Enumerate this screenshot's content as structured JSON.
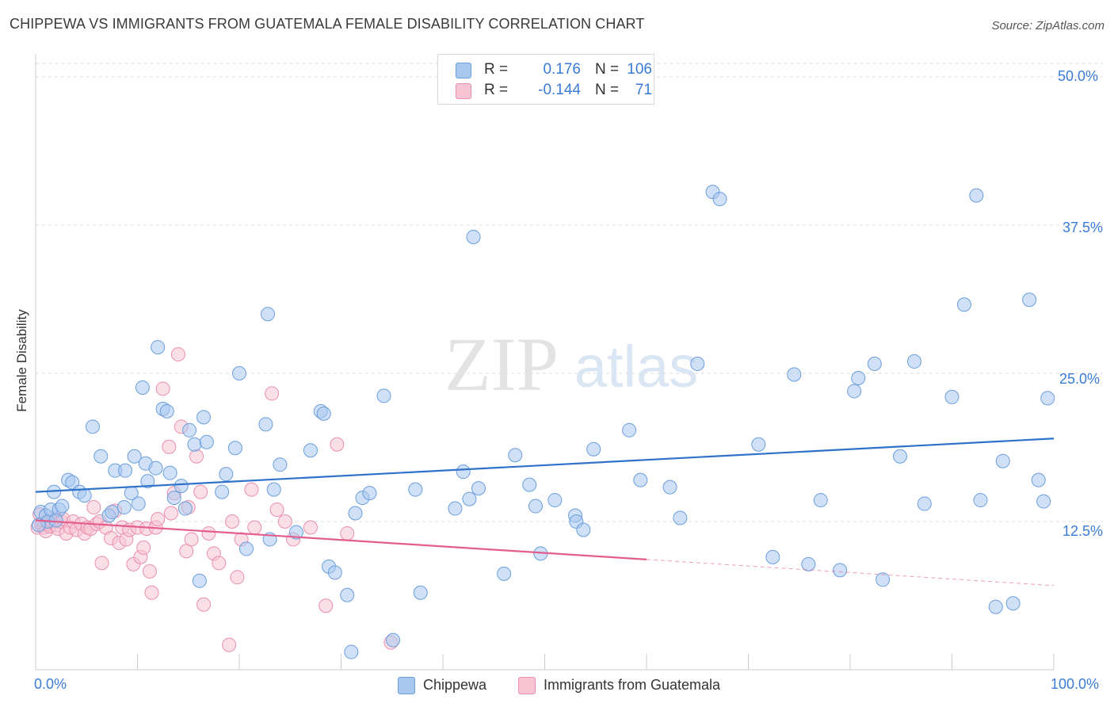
{
  "header": {
    "title": "CHIPPEWA VS IMMIGRANTS FROM GUATEMALA FEMALE DISABILITY CORRELATION CHART",
    "source": "Source: ZipAtlas.com"
  },
  "watermark": {
    "zip": "ZIP",
    "atlas": "atlas"
  },
  "legend_top": {
    "rows": [
      {
        "r_label": "R =",
        "r_value": "0.176",
        "n_label": "N =",
        "n_value": "106",
        "color": "#a9c8f0"
      },
      {
        "r_label": "R =",
        "r_value": "-0.144",
        "n_label": "N =",
        "n_value": "71",
        "color": "#f5b8cc"
      }
    ]
  },
  "legend_bottom": {
    "items": [
      {
        "label": "Chippewa",
        "color": "#a9c8f0"
      },
      {
        "label": "Immigrants from Guatemala",
        "color": "#f5b8cc"
      }
    ]
  },
  "colors": {
    "blue_fill": "#a9c8f0",
    "blue_stroke": "#6a9edc",
    "blue_line": "#2f72c9",
    "pink_fill": "#f7c4d4",
    "pink_stroke": "#e98fae",
    "pink_line": "#e35d8e",
    "grid": "#dddddd",
    "tick_text": "#3a7bd5"
  },
  "chart_data": {
    "type": "scatter",
    "title": "CHIPPEWA VS IMMIGRANTS FROM GUATEMALA FEMALE DISABILITY CORRELATION CHART",
    "xlabel": "",
    "ylabel": "Female Disability",
    "xlim": [
      0,
      100
    ],
    "ylim": [
      0,
      50
    ],
    "x_tick_labels": [
      "0.0%",
      "100.0%"
    ],
    "y_ticks": [
      12.5,
      25.0,
      37.5,
      50.0
    ],
    "y_tick_labels": [
      "12.5%",
      "25.0%",
      "37.5%",
      "50.0%"
    ],
    "grid": true,
    "legend_position": "top-center",
    "series": [
      {
        "name": "Chippewa",
        "r": 0.176,
        "n": 106,
        "trend": {
          "x0": 0,
          "y0": 15.0,
          "x1": 100,
          "y1": 19.5,
          "dashed_from": null
        },
        "points": [
          [
            0.5,
            13.3
          ],
          [
            1.0,
            13.0
          ],
          [
            1.2,
            12.5
          ],
          [
            1.5,
            13.5
          ],
          [
            1.8,
            15.0
          ],
          [
            2.3,
            13.5
          ],
          [
            2.6,
            13.8
          ],
          [
            3.2,
            16.0
          ],
          [
            3.6,
            15.8
          ],
          [
            4.3,
            15.0
          ],
          [
            4.8,
            14.7
          ],
          [
            5.6,
            20.5
          ],
          [
            6.4,
            18.0
          ],
          [
            7.2,
            13.0
          ],
          [
            7.5,
            13.3
          ],
          [
            7.8,
            16.8
          ],
          [
            8.7,
            13.7
          ],
          [
            8.8,
            16.8
          ],
          [
            9.4,
            14.9
          ],
          [
            9.7,
            18.0
          ],
          [
            10.1,
            14.0
          ],
          [
            10.5,
            23.8
          ],
          [
            10.8,
            17.4
          ],
          [
            11.0,
            15.9
          ],
          [
            11.8,
            17.0
          ],
          [
            12.0,
            27.2
          ],
          [
            12.5,
            22.0
          ],
          [
            12.9,
            21.8
          ],
          [
            13.2,
            16.6
          ],
          [
            13.6,
            14.5
          ],
          [
            14.3,
            15.5
          ],
          [
            14.7,
            13.6
          ],
          [
            15.1,
            20.2
          ],
          [
            15.6,
            19.0
          ],
          [
            16.1,
            7.5
          ],
          [
            16.5,
            21.3
          ],
          [
            16.8,
            19.2
          ],
          [
            18.3,
            15.0
          ],
          [
            18.7,
            16.5
          ],
          [
            19.6,
            18.7
          ],
          [
            20.0,
            25.0
          ],
          [
            20.7,
            10.2
          ],
          [
            22.6,
            20.7
          ],
          [
            22.8,
            30.0
          ],
          [
            23.0,
            11.0
          ],
          [
            23.4,
            15.2
          ],
          [
            24.0,
            17.3
          ],
          [
            25.6,
            11.6
          ],
          [
            27.0,
            18.5
          ],
          [
            28.0,
            21.8
          ],
          [
            28.3,
            21.6
          ],
          [
            28.8,
            8.7
          ],
          [
            29.4,
            8.2
          ],
          [
            30.6,
            6.3
          ],
          [
            31.0,
            1.5
          ],
          [
            31.4,
            13.2
          ],
          [
            32.1,
            14.5
          ],
          [
            32.8,
            14.9
          ],
          [
            34.2,
            23.1
          ],
          [
            35.1,
            2.5
          ],
          [
            37.3,
            15.2
          ],
          [
            37.8,
            6.5
          ],
          [
            41.2,
            13.6
          ],
          [
            42.0,
            16.7
          ],
          [
            42.6,
            14.4
          ],
          [
            43.0,
            36.5
          ],
          [
            43.5,
            15.3
          ],
          [
            46.0,
            8.1
          ],
          [
            47.1,
            18.1
          ],
          [
            48.5,
            15.6
          ],
          [
            49.1,
            13.8
          ],
          [
            49.6,
            9.8
          ],
          [
            51.0,
            14.3
          ],
          [
            53.0,
            13.0
          ],
          [
            53.1,
            12.5
          ],
          [
            53.8,
            11.8
          ],
          [
            54.8,
            18.6
          ],
          [
            58.3,
            20.2
          ],
          [
            59.4,
            16.0
          ],
          [
            62.3,
            15.4
          ],
          [
            63.3,
            12.8
          ],
          [
            65.0,
            25.8
          ],
          [
            66.5,
            40.3
          ],
          [
            67.2,
            39.7
          ],
          [
            71.0,
            19.0
          ],
          [
            72.4,
            9.5
          ],
          [
            74.5,
            24.9
          ],
          [
            75.9,
            8.9
          ],
          [
            77.1,
            14.3
          ],
          [
            79.0,
            8.4
          ],
          [
            80.4,
            23.5
          ],
          [
            80.8,
            24.6
          ],
          [
            82.4,
            25.8
          ],
          [
            83.2,
            7.6
          ],
          [
            84.9,
            18.0
          ],
          [
            86.3,
            26.0
          ],
          [
            87.3,
            14.0
          ],
          [
            90.0,
            23.0
          ],
          [
            91.2,
            30.8
          ],
          [
            92.4,
            40.0
          ],
          [
            92.8,
            14.3
          ],
          [
            94.3,
            5.3
          ],
          [
            95.0,
            17.6
          ],
          [
            96.0,
            5.6
          ],
          [
            97.6,
            31.2
          ],
          [
            98.5,
            16.0
          ],
          [
            99.0,
            14.2
          ],
          [
            99.4,
            22.9
          ],
          [
            0.3,
            12.2
          ],
          [
            2.0,
            12.6
          ]
        ]
      },
      {
        "name": "Immigrants from Guatemala",
        "r": -0.144,
        "n": 71,
        "trend": {
          "x0": 0,
          "y0": 12.6,
          "x1": 100,
          "y1": 7.1,
          "dashed_from": 60
        },
        "points": [
          [
            0.2,
            12.0
          ],
          [
            0.4,
            13.1
          ],
          [
            0.6,
            12.3
          ],
          [
            0.8,
            12.0
          ],
          [
            1.0,
            11.7
          ],
          [
            1.2,
            12.3
          ],
          [
            1.4,
            12.1
          ],
          [
            1.6,
            12.5
          ],
          [
            1.8,
            12.8
          ],
          [
            2.0,
            12.2
          ],
          [
            2.2,
            11.9
          ],
          [
            2.5,
            12.5
          ],
          [
            2.7,
            12.7
          ],
          [
            3.0,
            11.5
          ],
          [
            3.4,
            12.0
          ],
          [
            3.7,
            12.5
          ],
          [
            4.0,
            11.8
          ],
          [
            4.5,
            12.3
          ],
          [
            4.8,
            11.5
          ],
          [
            5.1,
            12.0
          ],
          [
            5.4,
            11.9
          ],
          [
            5.7,
            13.7
          ],
          [
            6.0,
            12.3
          ],
          [
            6.3,
            12.5
          ],
          [
            6.5,
            9.0
          ],
          [
            6.9,
            12.0
          ],
          [
            7.4,
            11.1
          ],
          [
            7.8,
            13.4
          ],
          [
            8.2,
            10.7
          ],
          [
            8.5,
            12.0
          ],
          [
            8.9,
            11.0
          ],
          [
            9.2,
            11.8
          ],
          [
            9.6,
            8.9
          ],
          [
            10.0,
            12.0
          ],
          [
            10.3,
            9.5
          ],
          [
            10.6,
            10.3
          ],
          [
            10.9,
            11.9
          ],
          [
            11.2,
            8.3
          ],
          [
            11.4,
            6.5
          ],
          [
            11.8,
            12.0
          ],
          [
            12.0,
            12.7
          ],
          [
            12.5,
            23.7
          ],
          [
            13.1,
            18.8
          ],
          [
            13.3,
            13.2
          ],
          [
            13.6,
            14.9
          ],
          [
            14.0,
            26.6
          ],
          [
            14.3,
            20.5
          ],
          [
            14.8,
            10.0
          ],
          [
            15.0,
            13.7
          ],
          [
            15.3,
            11.0
          ],
          [
            15.8,
            18.0
          ],
          [
            16.2,
            15.0
          ],
          [
            16.5,
            5.5
          ],
          [
            17.0,
            11.5
          ],
          [
            17.5,
            9.8
          ],
          [
            18.0,
            9.0
          ],
          [
            19.0,
            2.1
          ],
          [
            19.3,
            12.5
          ],
          [
            19.8,
            7.8
          ],
          [
            20.2,
            11.0
          ],
          [
            21.2,
            15.2
          ],
          [
            21.5,
            12.0
          ],
          [
            23.2,
            23.3
          ],
          [
            23.7,
            13.5
          ],
          [
            24.5,
            12.5
          ],
          [
            25.3,
            11.0
          ],
          [
            27.0,
            12.0
          ],
          [
            28.5,
            5.4
          ],
          [
            29.6,
            19.0
          ],
          [
            30.6,
            11.5
          ],
          [
            34.9,
            2.3
          ]
        ]
      }
    ]
  }
}
